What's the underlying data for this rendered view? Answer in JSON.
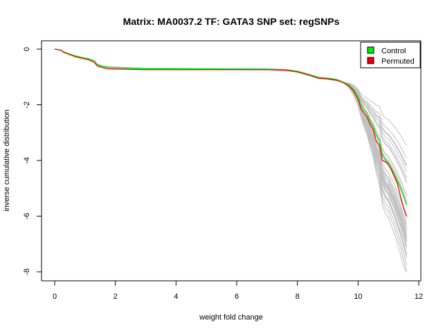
{
  "chart_data": {
    "type": "line",
    "title": "Matrix: MA0037.2 TF: GATA3 SNP set: regSNPs",
    "xlabel": "weight fold change",
    "ylabel": "inverse cumulative distribution",
    "xlim": [
      0,
      12
    ],
    "ylim": [
      -8,
      0
    ],
    "x_ticks": [
      0,
      2,
      4,
      6,
      8,
      10,
      12
    ],
    "y_ticks": [
      0,
      -2,
      -4,
      -6,
      -8
    ],
    "grid": false,
    "legend_position": "top-right",
    "series": [
      {
        "name": "Control",
        "color": "#00ee00",
        "x": [
          0.0,
          0.2,
          0.3,
          0.5,
          0.7,
          0.9,
          1.1,
          1.3,
          1.4,
          1.6,
          1.8,
          2.2,
          3.0,
          5.0,
          7.0,
          7.6,
          8.0,
          8.4,
          8.7,
          9.0,
          9.3,
          9.5,
          9.7,
          9.85,
          10.0,
          10.1,
          10.2,
          10.3,
          10.4,
          10.5,
          10.6,
          10.7,
          10.8,
          10.9,
          11.0,
          11.1,
          11.2,
          11.3,
          11.4,
          11.5,
          11.6
        ],
        "y": [
          0.0,
          -0.03,
          -0.1,
          -0.18,
          -0.25,
          -0.3,
          -0.34,
          -0.42,
          -0.55,
          -0.62,
          -0.65,
          -0.67,
          -0.7,
          -0.71,
          -0.72,
          -0.74,
          -0.8,
          -0.92,
          -1.02,
          -1.05,
          -1.1,
          -1.18,
          -1.3,
          -1.45,
          -1.7,
          -2.0,
          -2.2,
          -2.35,
          -2.6,
          -2.8,
          -3.1,
          -3.3,
          -3.8,
          -4.0,
          -4.1,
          -4.3,
          -4.5,
          -4.75,
          -5.0,
          -5.3,
          -5.6
        ]
      },
      {
        "name": "Permuted",
        "color": "#ee0000",
        "x": [
          0.0,
          0.2,
          0.3,
          0.5,
          0.7,
          0.9,
          1.1,
          1.3,
          1.4,
          1.6,
          1.8,
          2.2,
          3.0,
          5.0,
          7.0,
          7.6,
          8.0,
          8.4,
          8.7,
          9.0,
          9.3,
          9.5,
          9.7,
          9.85,
          10.0,
          10.1,
          10.2,
          10.3,
          10.4,
          10.5,
          10.6,
          10.7,
          10.8,
          10.9,
          11.0,
          11.1,
          11.2,
          11.3,
          11.4,
          11.5,
          11.6
        ],
        "y": [
          0.0,
          -0.04,
          -0.12,
          -0.2,
          -0.28,
          -0.33,
          -0.38,
          -0.47,
          -0.6,
          -0.67,
          -0.71,
          -0.72,
          -0.74,
          -0.74,
          -0.74,
          -0.76,
          -0.82,
          -0.94,
          -1.05,
          -1.07,
          -1.12,
          -1.2,
          -1.32,
          -1.5,
          -1.8,
          -2.15,
          -2.3,
          -2.45,
          -2.7,
          -2.9,
          -3.3,
          -3.45,
          -4.0,
          -4.05,
          -4.15,
          -4.35,
          -4.6,
          -4.85,
          -5.3,
          -5.7,
          -6.0
        ]
      }
    ],
    "background_series_color": "#c0c0c0",
    "background_series_count": 40
  }
}
